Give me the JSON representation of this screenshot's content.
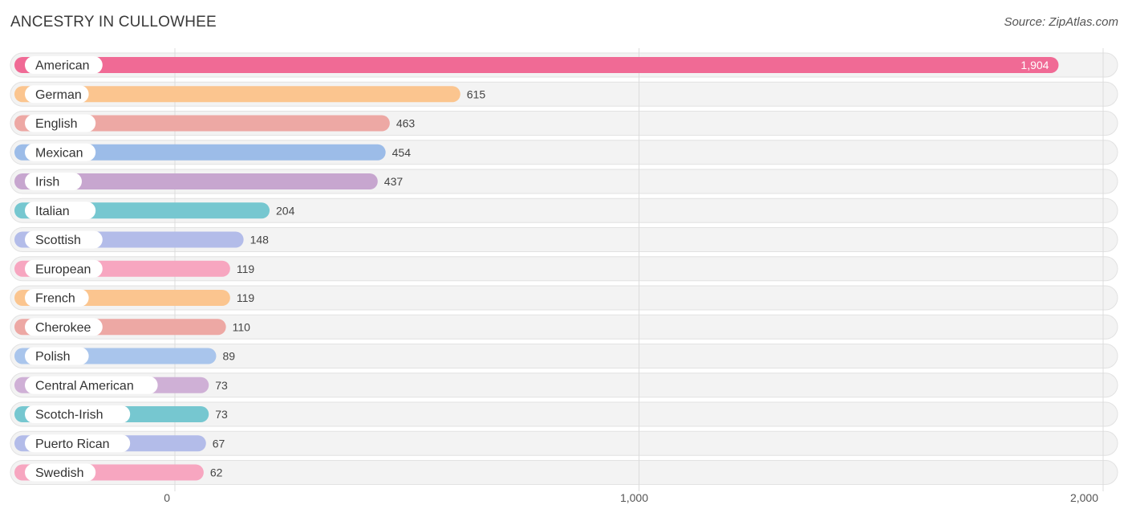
{
  "header": {
    "title": "ANCESTRY IN CULLOWHEE",
    "source": "Source: ZipAtlas.com"
  },
  "chart_data": {
    "type": "bar",
    "orientation": "horizontal",
    "title": "ANCESTRY IN CULLOWHEE",
    "xlabel": "",
    "ylabel": "",
    "xlim": [
      0,
      2000
    ],
    "x_ticks": [
      0,
      1000,
      2000
    ],
    "x_tick_labels": [
      "0",
      "1,000",
      "2,000"
    ],
    "grid": true,
    "categories": [
      "American",
      "German",
      "English",
      "Mexican",
      "Irish",
      "Italian",
      "Scottish",
      "European",
      "French",
      "Cherokee",
      "Polish",
      "Central American",
      "Scotch-Irish",
      "Puerto Rican",
      "Swedish"
    ],
    "values": [
      1904,
      615,
      463,
      454,
      437,
      204,
      148,
      119,
      119,
      110,
      89,
      73,
      73,
      67,
      62
    ],
    "value_labels": [
      "1,904",
      "615",
      "463",
      "454",
      "437",
      "204",
      "148",
      "119",
      "119",
      "110",
      "89",
      "73",
      "73",
      "67",
      "62"
    ],
    "colors": [
      "#f06a95",
      "#fbc58f",
      "#eda8a4",
      "#9cbce8",
      "#c7a6cf",
      "#76c7d0",
      "#b3bce9",
      "#f7a6c0",
      "#fbc58f",
      "#eda8a4",
      "#a9c5ec",
      "#cfb0d6",
      "#76c7d0",
      "#b3bce9",
      "#f7a6c0"
    ]
  }
}
